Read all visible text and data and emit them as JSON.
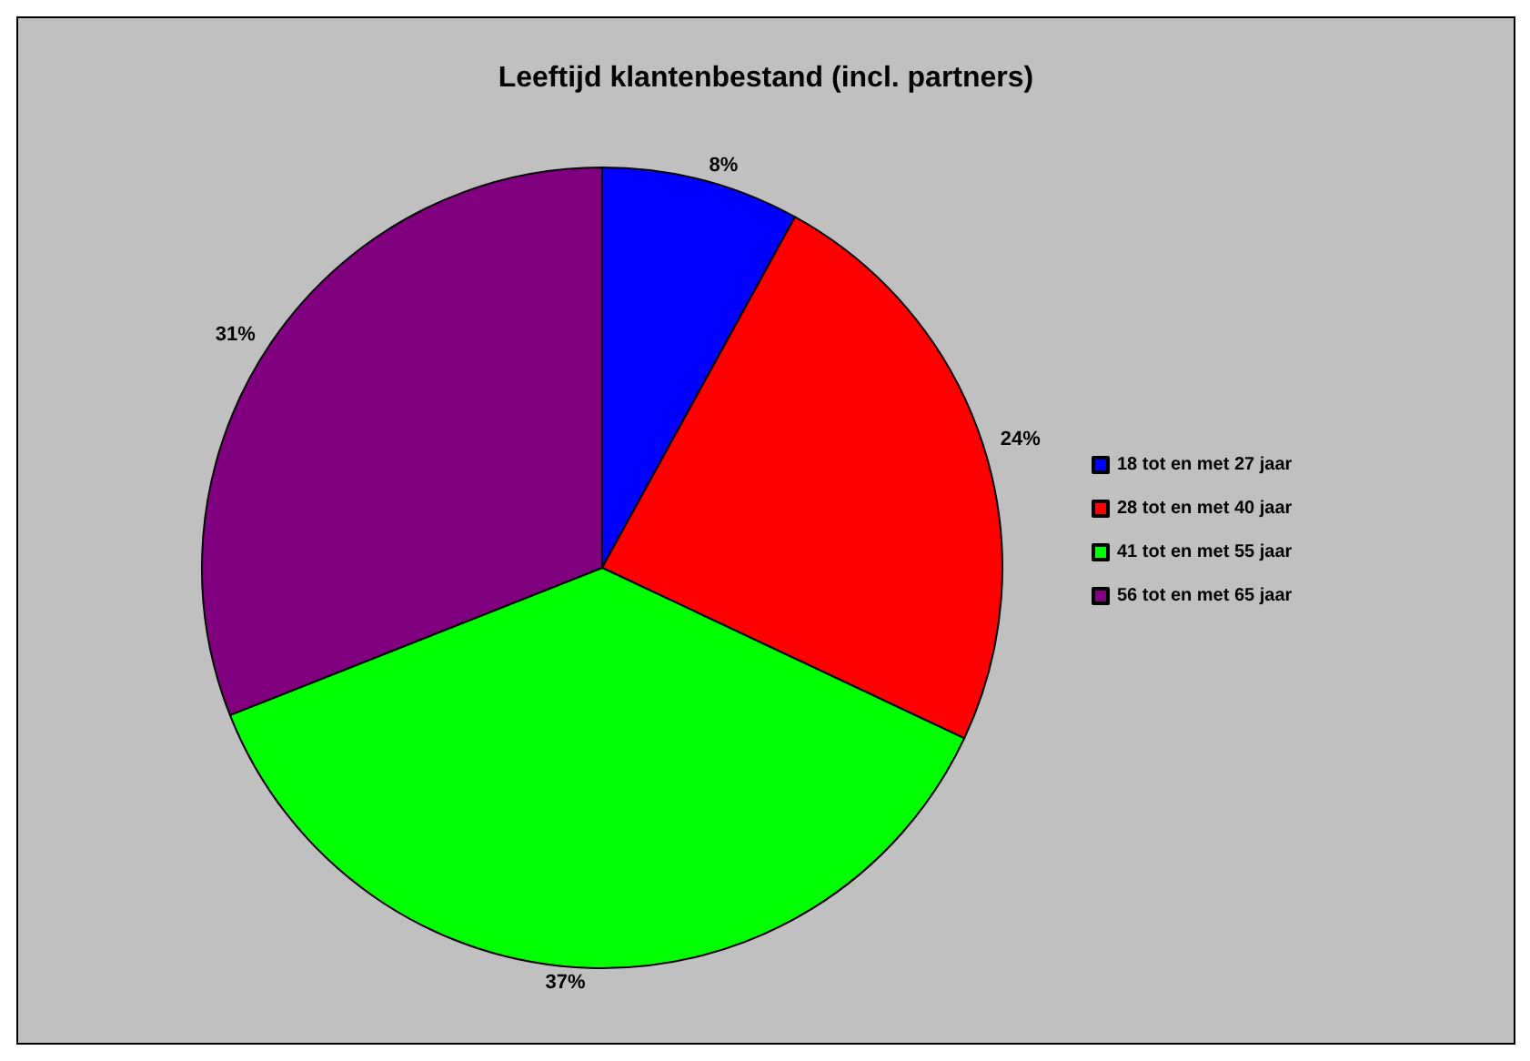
{
  "chart_data": {
    "type": "pie",
    "title": "Leeftijd klantenbestand (incl. partners)",
    "categories": [
      "18 tot en met 27 jaar",
      "28 tot en met 40 jaar",
      "41 tot en met 55 jaar",
      "56 tot en met 65 jaar"
    ],
    "values": [
      8,
      24,
      37,
      31
    ],
    "value_labels": [
      "8%",
      "24%",
      "37%",
      "31%"
    ],
    "colors": [
      "#0000ff",
      "#ff0000",
      "#00ff00",
      "#800080"
    ],
    "legend": "right"
  }
}
